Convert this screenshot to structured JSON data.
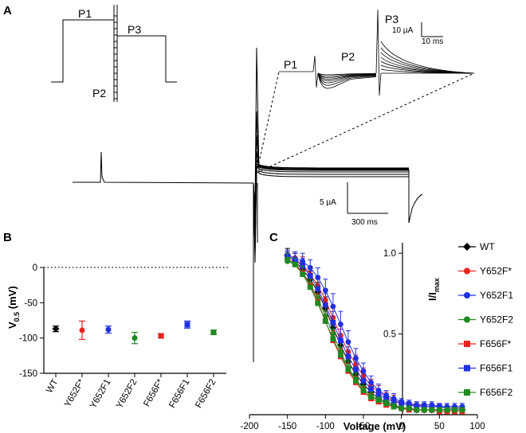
{
  "panels": {
    "a": "A",
    "b": "B",
    "c": "C"
  },
  "protocol": {
    "p1": "P1",
    "p2": "P2",
    "p3": "P3"
  },
  "inset": {
    "p1": "P1",
    "p2": "P2",
    "p3": "P3",
    "scale_current": "10 µA",
    "scale_time": "10 ms"
  },
  "main_scale": {
    "current": "5 µA",
    "time": "300 ms"
  },
  "chart_data": [
    {
      "type": "scatter",
      "panel": "B",
      "ylabel_main": "V",
      "ylabel_sub": "0.5",
      "ylabel_unit": " (mV)",
      "ylim": [
        -150,
        0
      ],
      "yticks": [
        0,
        -50,
        -100,
        -150
      ],
      "zero_line": "dotted",
      "categories": [
        "WT",
        "Y652F*",
        "Y652F1",
        "Y652F2",
        "F656F*",
        "F656F1",
        "F656F2"
      ],
      "values": [
        -87,
        -89,
        -88,
        -100,
        -97,
        -81,
        -92
      ],
      "errors": [
        4,
        13,
        5,
        8,
        3,
        5,
        3
      ],
      "colors": [
        "#000000",
        "#e8231f",
        "#1f30e0",
        "#1f8a1f",
        "#e8231f",
        "#1f30e0",
        "#1f8a1f"
      ],
      "markers": [
        "diamond",
        "circle",
        "circle",
        "circle",
        "square",
        "square",
        "square"
      ]
    },
    {
      "type": "line",
      "panel": "C",
      "xlabel": "Voltage (mV)",
      "ylabel_main": "I/I",
      "ylabel_sub": "max",
      "xlim": [
        -200,
        100
      ],
      "ylim": [
        0,
        1.07
      ],
      "xticks": [
        -200,
        -150,
        -100,
        -50,
        0,
        50,
        100
      ],
      "yticks": [
        0.5,
        1.0
      ],
      "ytick_labels": [
        "0.5",
        "1.0"
      ],
      "x": [
        -150,
        -140,
        -130,
        -120,
        -110,
        -100,
        -90,
        -80,
        -70,
        -60,
        -50,
        -40,
        -30,
        -20,
        -10,
        0,
        10,
        20,
        30,
        40,
        50,
        60,
        70,
        80
      ],
      "series": [
        {
          "name": "WT",
          "color": "#000000",
          "marker": "diamond",
          "values": [
            0.99,
            0.95,
            0.9,
            0.84,
            0.76,
            0.66,
            0.54,
            0.43,
            0.33,
            0.25,
            0.19,
            0.14,
            0.1,
            0.08,
            0.06,
            0.04,
            0.04,
            0.03,
            0.03,
            0.03,
            0.03,
            0.03,
            0.03,
            0.03
          ],
          "err": [
            0.04,
            0.05,
            0.05,
            0.05,
            0.06,
            0.07,
            0.07,
            0.07,
            0.06,
            0.05,
            0.04,
            0.04,
            0.03,
            0.02,
            0.02,
            0.02,
            0.02,
            0.01,
            0.01,
            0.01,
            0.01,
            0.01,
            0.01,
            0.01
          ]
        },
        {
          "name": "Y652F*",
          "color": "#e8231f",
          "marker": "circle",
          "values": [
            0.98,
            0.96,
            0.93,
            0.87,
            0.8,
            0.71,
            0.6,
            0.49,
            0.39,
            0.31,
            0.24,
            0.18,
            0.14,
            0.11,
            0.09,
            0.07,
            0.06,
            0.06,
            0.05,
            0.05,
            0.05,
            0.04,
            0.04,
            0.04
          ],
          "err": [
            0.03,
            0.04,
            0.05,
            0.05,
            0.06,
            0.07,
            0.08,
            0.07,
            0.07,
            0.06,
            0.05,
            0.04,
            0.04,
            0.03,
            0.03,
            0.02,
            0.02,
            0.02,
            0.02,
            0.01,
            0.01,
            0.01,
            0.01,
            0.01
          ]
        },
        {
          "name": "Y652F1",
          "color": "#1f30e0",
          "marker": "circle",
          "values": [
            0.99,
            0.97,
            0.95,
            0.91,
            0.85,
            0.77,
            0.67,
            0.56,
            0.45,
            0.35,
            0.27,
            0.2,
            0.15,
            0.12,
            0.1,
            0.08,
            0.07,
            0.06,
            0.06,
            0.06,
            0.05,
            0.05,
            0.05,
            0.05
          ],
          "err": [
            0.03,
            0.04,
            0.05,
            0.05,
            0.06,
            0.07,
            0.08,
            0.08,
            0.07,
            0.06,
            0.05,
            0.04,
            0.04,
            0.03,
            0.03,
            0.02,
            0.02,
            0.02,
            0.02,
            0.02,
            0.02,
            0.02,
            0.02,
            0.02
          ]
        },
        {
          "name": "Y652F2",
          "color": "#1f8a1f",
          "marker": "circle",
          "values": [
            0.95,
            0.93,
            0.88,
            0.81,
            0.72,
            0.61,
            0.5,
            0.39,
            0.29,
            0.22,
            0.16,
            0.12,
            0.09,
            0.07,
            0.05,
            0.04,
            0.04,
            0.03,
            0.03,
            0.03,
            0.03,
            0.03,
            0.03,
            0.03
          ],
          "err": [
            0.04,
            0.04,
            0.05,
            0.05,
            0.06,
            0.06,
            0.06,
            0.06,
            0.05,
            0.04,
            0.04,
            0.03,
            0.03,
            0.02,
            0.02,
            0.01,
            0.01,
            0.01,
            0.01,
            0.01,
            0.01,
            0.01,
            0.01,
            0.01
          ]
        },
        {
          "name": "F656F*",
          "color": "#e8231f",
          "marker": "square",
          "values": [
            0.97,
            0.94,
            0.88,
            0.8,
            0.7,
            0.58,
            0.46,
            0.36,
            0.27,
            0.2,
            0.14,
            0.1,
            0.08,
            0.06,
            0.05,
            0.04,
            0.03,
            0.03,
            0.03,
            0.03,
            0.02,
            0.02,
            0.02,
            0.02
          ],
          "err": [
            0.03,
            0.04,
            0.04,
            0.05,
            0.05,
            0.06,
            0.06,
            0.05,
            0.05,
            0.04,
            0.03,
            0.03,
            0.02,
            0.02,
            0.01,
            0.01,
            0.01,
            0.01,
            0.01,
            0.01,
            0.01,
            0.01,
            0.01,
            0.01
          ]
        },
        {
          "name": "F656F1",
          "color": "#1f30e0",
          "marker": "square",
          "values": [
            0.98,
            0.96,
            0.92,
            0.86,
            0.78,
            0.68,
            0.57,
            0.46,
            0.36,
            0.28,
            0.21,
            0.16,
            0.12,
            0.1,
            0.08,
            0.07,
            0.06,
            0.05,
            0.05,
            0.05,
            0.05,
            0.04,
            0.04,
            0.04
          ],
          "err": [
            0.03,
            0.04,
            0.05,
            0.05,
            0.06,
            0.07,
            0.07,
            0.07,
            0.06,
            0.05,
            0.05,
            0.04,
            0.03,
            0.03,
            0.02,
            0.02,
            0.02,
            0.02,
            0.02,
            0.01,
            0.01,
            0.01,
            0.01,
            0.01
          ]
        },
        {
          "name": "F656F2",
          "color": "#1f8a1f",
          "marker": "square",
          "values": [
            0.96,
            0.93,
            0.87,
            0.79,
            0.69,
            0.58,
            0.47,
            0.37,
            0.28,
            0.21,
            0.15,
            0.11,
            0.09,
            0.07,
            0.05,
            0.04,
            0.04,
            0.03,
            0.03,
            0.03,
            0.03,
            0.03,
            0.03,
            0.03
          ],
          "err": [
            0.04,
            0.04,
            0.05,
            0.05,
            0.05,
            0.06,
            0.06,
            0.05,
            0.05,
            0.04,
            0.03,
            0.03,
            0.02,
            0.02,
            0.02,
            0.01,
            0.01,
            0.01,
            0.01,
            0.01,
            0.01,
            0.01,
            0.01,
            0.01
          ]
        }
      ]
    }
  ]
}
